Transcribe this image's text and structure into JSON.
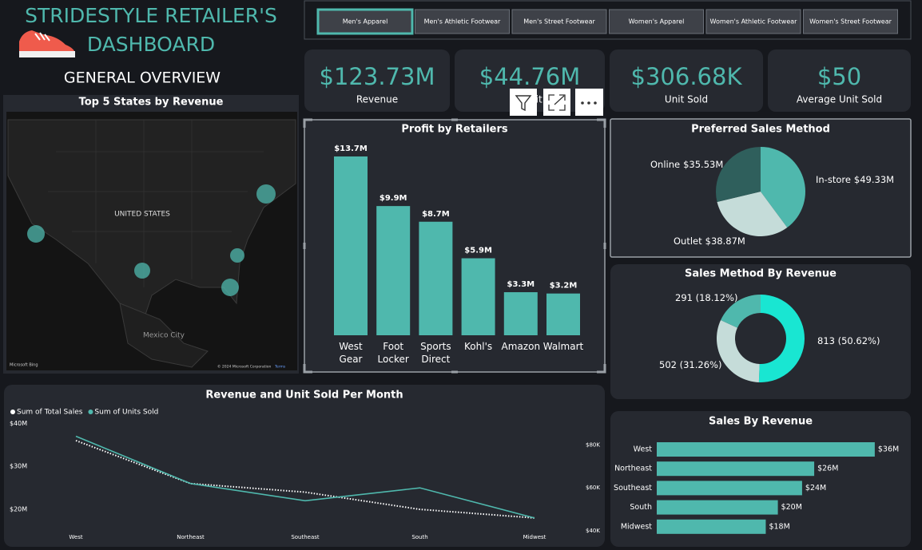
{
  "header": {
    "title_line1": "STRIDESTYLE RETAILER'S",
    "title_line2": "DASHBOARD",
    "subtitle": "GENERAL OVERVIEW"
  },
  "slicer": {
    "options": [
      "Men's Apparel",
      "Men's Athletic Footwear",
      "Men's Street Footwear",
      "Women's Apparel",
      "Women's Athletic Footwear",
      "Women's Street Footwear"
    ]
  },
  "kpis": [
    {
      "value": "$123.73M",
      "label": "Revenue"
    },
    {
      "value": "$44.76M",
      "label": "Profit"
    },
    {
      "value": "$306.68K",
      "label": "Unit Sold"
    },
    {
      "value": "$50",
      "label": "Average Unit Sold"
    }
  ],
  "map": {
    "title": "Top 5 States by Revenue",
    "country_label": "UNITED STATES",
    "city_label": "Mexico City",
    "attribution": "Microsoft Bing",
    "copyright": "© 2024 Microsoft Corporation",
    "terms": "Terms"
  },
  "chart_data": [
    {
      "type": "bar",
      "title": "Profit by Retailers",
      "categories": [
        "West Gear",
        "Foot Locker",
        "Sports Direct",
        "Kohl's",
        "Amazon",
        "Walmart"
      ],
      "values": [
        13.7,
        9.9,
        8.7,
        5.9,
        3.3,
        3.2
      ],
      "value_labels": [
        "$13.7M",
        "$9.9M",
        "$8.7M",
        "$5.9M",
        "$3.3M",
        "$3.2M"
      ],
      "color": "#4fb8ad"
    },
    {
      "type": "pie",
      "title": "Preferred Sales Method",
      "categories": [
        "In-store",
        "Outlet",
        "Online"
      ],
      "values": [
        49.33,
        38.87,
        35.53
      ],
      "value_labels": [
        "$49.33M",
        "$38.87M",
        "$35.53M"
      ],
      "colors": [
        "#4fb8ad",
        "#c5dcd9",
        "#2f5f5c"
      ]
    },
    {
      "type": "donut",
      "title": "Sales Method By Revenue",
      "values": [
        813,
        502,
        291
      ],
      "value_labels": [
        "813 (50.62%)",
        "502 (31.26%)",
        "291 (18.12%)"
      ],
      "colors": [
        "#19e6d2",
        "#c5dcd9",
        "#4fb8ad"
      ]
    },
    {
      "type": "hbar",
      "title": "Sales By Revenue",
      "categories": [
        "West",
        "Northeast",
        "Southeast",
        "South",
        "Midwest"
      ],
      "values": [
        36,
        26,
        24,
        20,
        18
      ],
      "value_labels": [
        "$36M",
        "$26M",
        "$24M",
        "$20M",
        "$18M"
      ],
      "color": "#4fb8ad"
    },
    {
      "type": "line",
      "title": "Revenue and Unit Sold Per Month",
      "categories": [
        "West",
        "Northeast",
        "Southeast",
        "South",
        "Midwest"
      ],
      "series": [
        {
          "name": "Sum of Total Sales",
          "color": "#ffffff",
          "line_style": "dotted",
          "values": [
            36,
            26,
            24,
            20,
            18
          ]
        },
        {
          "name": "Sum of Units Sold",
          "color": "#4fb8ad",
          "line_style": "solid",
          "axis": "y2",
          "values": [
            84,
            62,
            54,
            60,
            46
          ]
        }
      ],
      "ylim": [
        15,
        41
      ],
      "yticks": [
        {
          "value": 20,
          "label": "$20M"
        },
        {
          "value": 30,
          "label": "$30M"
        },
        {
          "value": 40,
          "label": "$40M"
        }
      ],
      "y2lim": [
        40,
        92
      ],
      "y2ticks": [
        {
          "value": 40,
          "label": "$40K"
        },
        {
          "value": 60,
          "label": "$60K"
        },
        {
          "value": 80,
          "label": "$80K"
        }
      ]
    }
  ]
}
